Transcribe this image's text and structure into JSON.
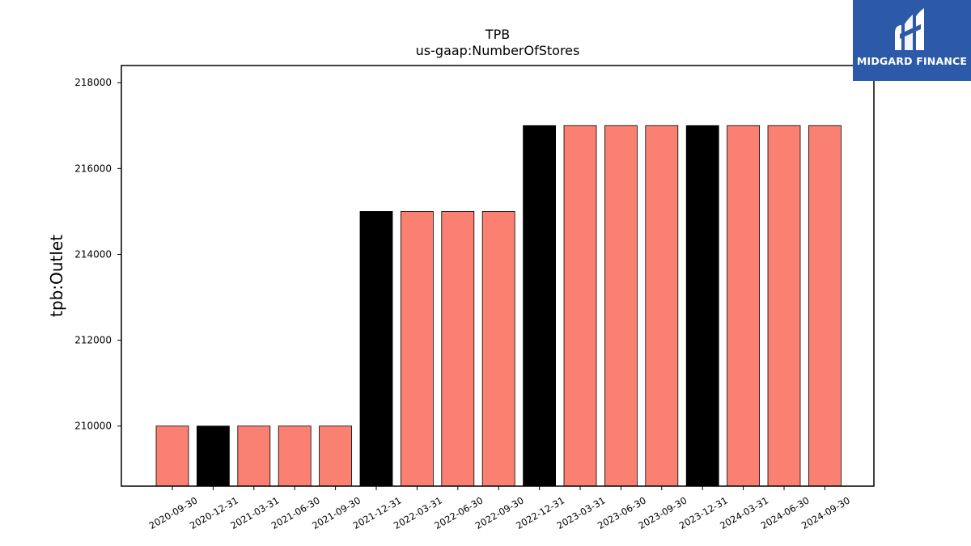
{
  "chart_data": {
    "type": "bar",
    "title": "TPB",
    "subtitle": "us-gaap:NumberOfStores",
    "xlabel": "",
    "ylabel": "tpb:Outlet",
    "ylim": [
      208600,
      218400
    ],
    "yticks": [
      210000,
      212000,
      214000,
      216000,
      218000
    ],
    "categories": [
      "2020-09-30",
      "2020-12-31",
      "2021-03-31",
      "2021-06-30",
      "2021-09-30",
      "2021-12-31",
      "2022-03-31",
      "2022-06-30",
      "2022-09-30",
      "2022-12-31",
      "2023-03-31",
      "2023-06-30",
      "2023-09-30",
      "2023-12-31",
      "2024-03-31",
      "2024-06-30",
      "2024-09-30"
    ],
    "values": [
      210000,
      210000,
      210000,
      210000,
      210000,
      215000,
      215000,
      215000,
      215000,
      217000,
      217000,
      217000,
      217000,
      217000,
      217000,
      217000,
      217000
    ],
    "highlight": [
      false,
      true,
      false,
      false,
      false,
      true,
      false,
      false,
      false,
      true,
      false,
      false,
      false,
      true,
      false,
      false,
      false
    ],
    "colors": {
      "bar": "#fa8072",
      "highlight": "#000000",
      "edge": "#000000"
    },
    "grid": false,
    "legend": "none"
  },
  "logo": {
    "text": "MIDGARD FINANCE",
    "background": "#2c5aa8"
  }
}
